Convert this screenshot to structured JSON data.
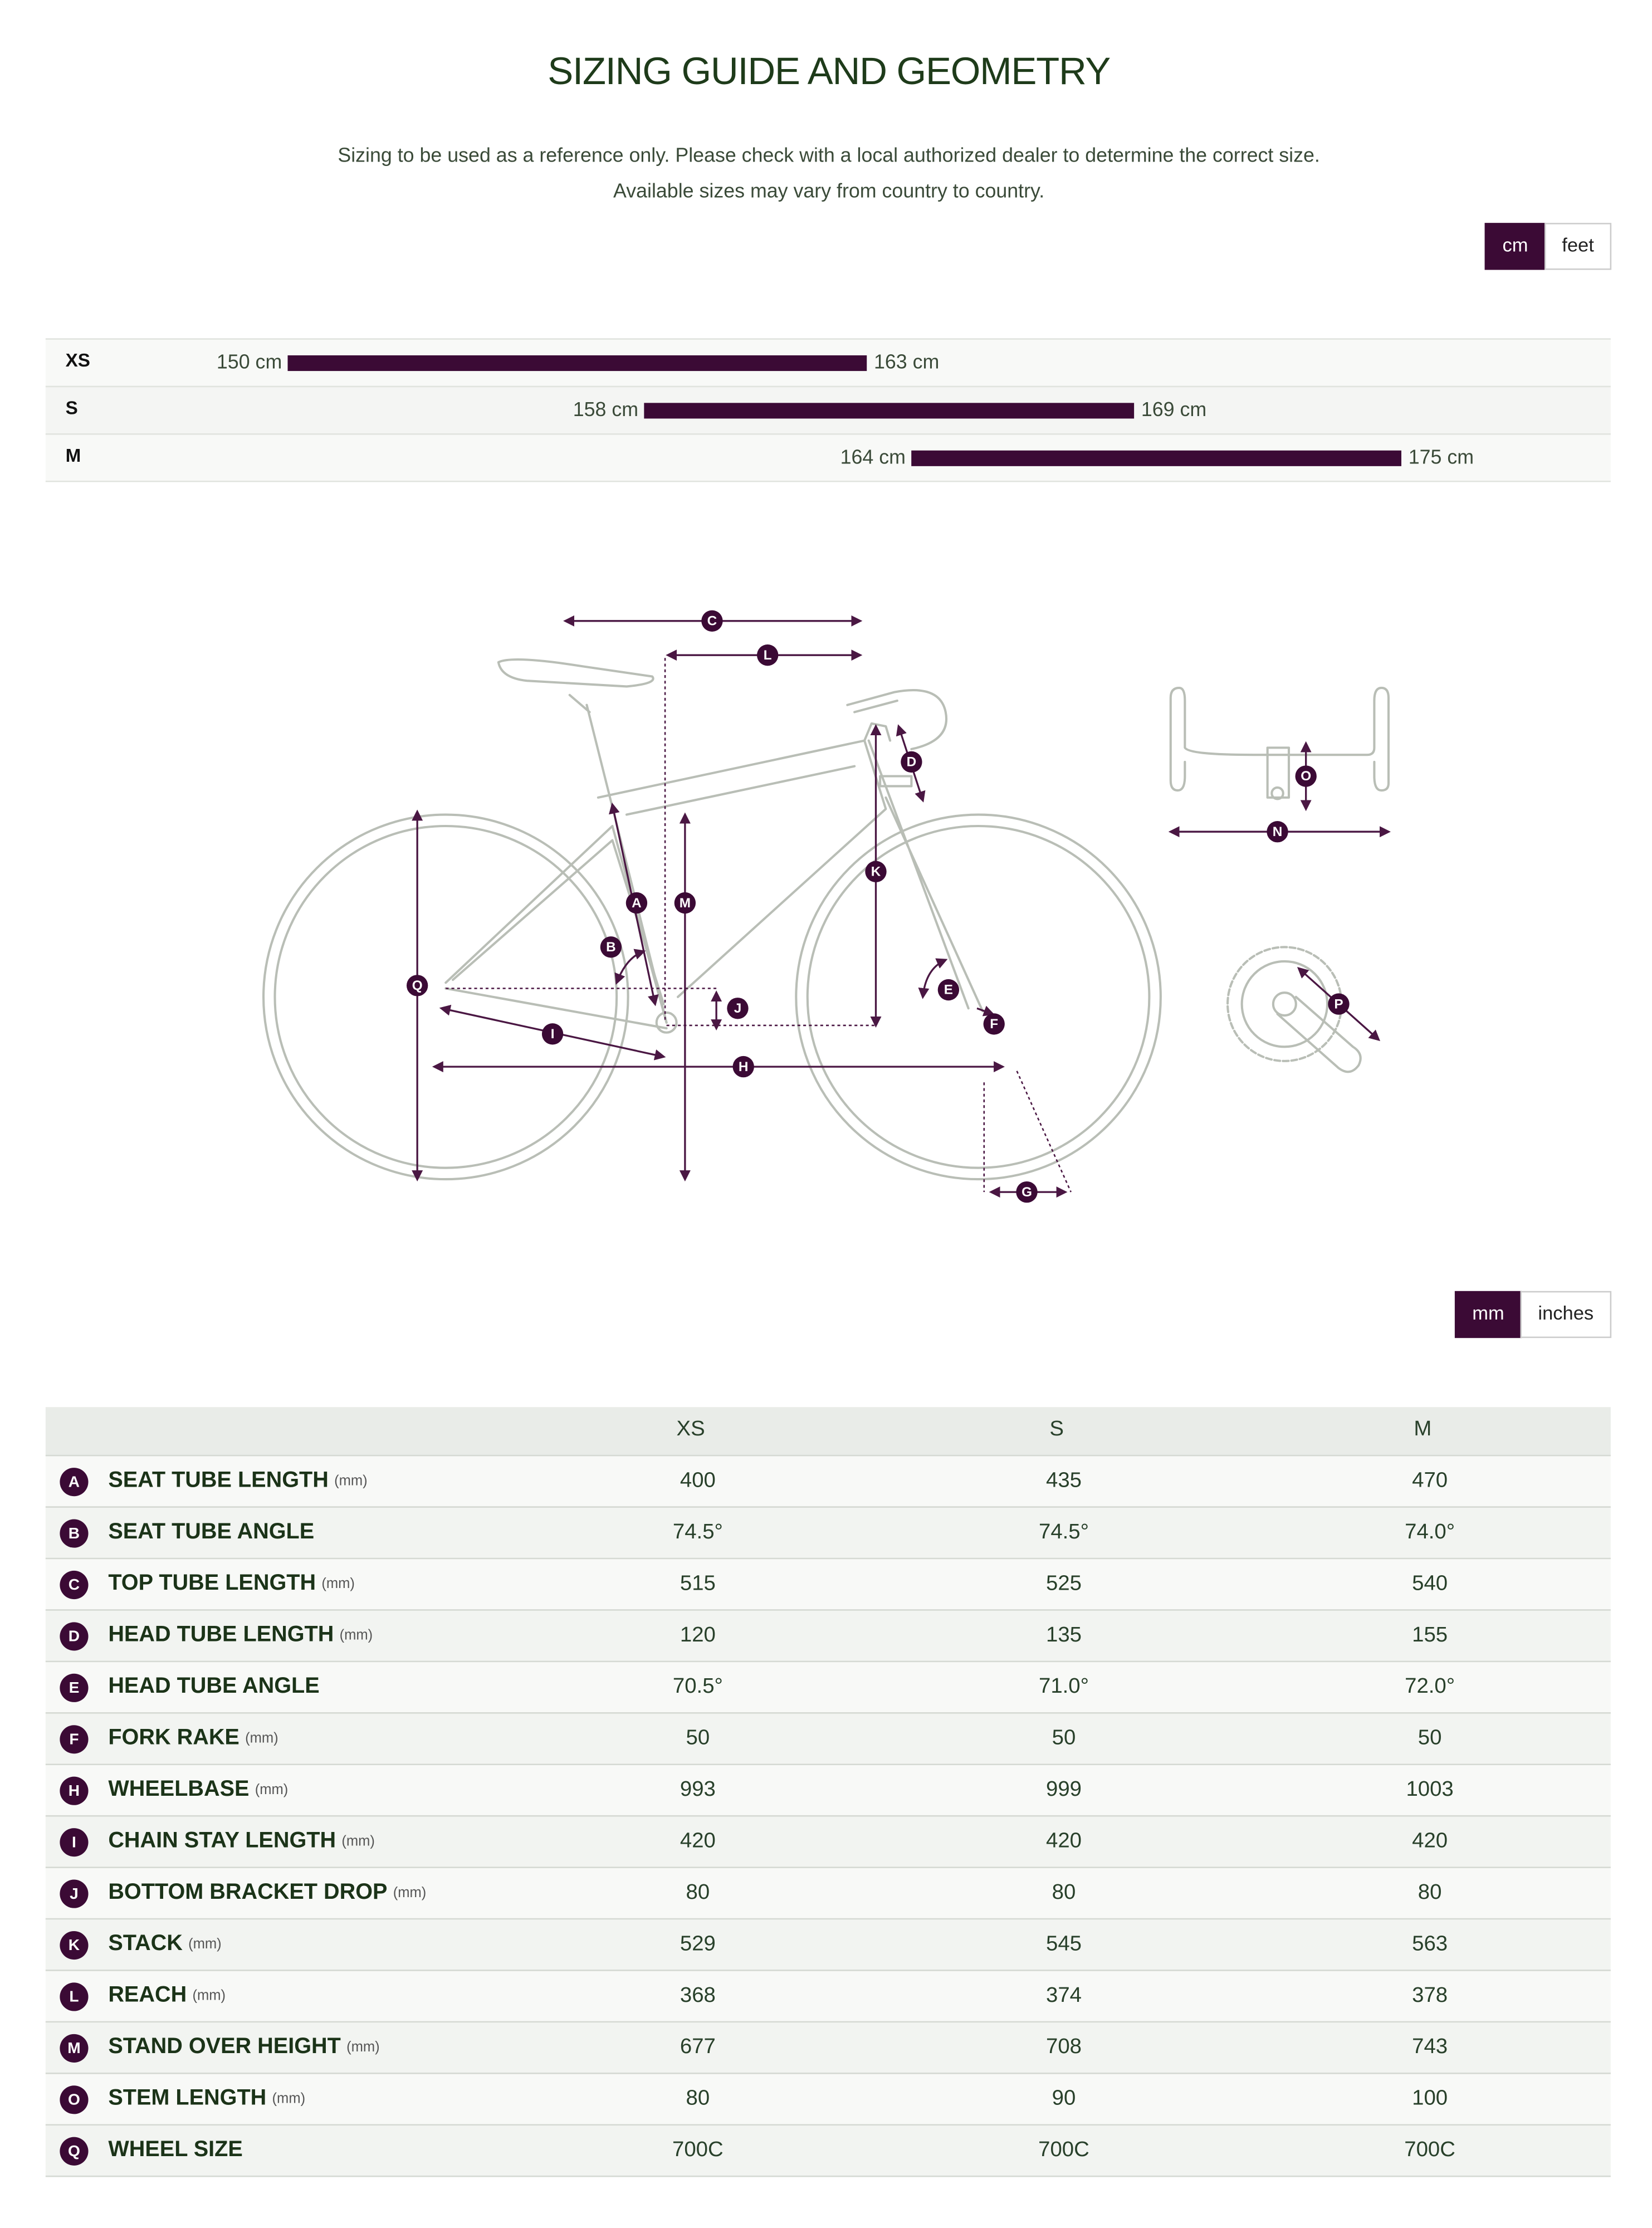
{
  "header": {
    "title": "SIZING GUIDE AND GEOMETRY",
    "notes": [
      "Sizing to be used as a reference only. Please check with a local authorized dealer to determine the correct size.",
      "Available sizes may vary from country to country."
    ]
  },
  "height_unit_toggle": {
    "options": [
      "cm",
      "feet"
    ],
    "selected": 0
  },
  "size_chart": {
    "type": "range-bar",
    "color": "#3b0a35",
    "rows": [
      {
        "size": "XS",
        "min": 150,
        "max": 163,
        "min_label": "150 cm",
        "max_label": "163 cm"
      },
      {
        "size": "S",
        "min": 158,
        "max": 169,
        "min_label": "158 cm",
        "max_label": "169 cm"
      },
      {
        "size": "M",
        "min": 164,
        "max": 175,
        "min_label": "164 cm",
        "max_label": "175 cm"
      }
    ]
  },
  "diagram": {
    "markers": [
      "C",
      "L",
      "D",
      "O",
      "N",
      "K",
      "A",
      "M",
      "B",
      "Q",
      "E",
      "J",
      "I",
      "F",
      "H",
      "G",
      "P"
    ]
  },
  "geometry_unit_toggle": {
    "options": [
      "mm",
      "inches"
    ],
    "selected": 0
  },
  "geometry_table": {
    "columns": [
      "XS",
      "S",
      "M"
    ],
    "rows": [
      {
        "key": "A",
        "label": "SEAT TUBE LENGTH",
        "unit": "(mm)",
        "values": [
          "400",
          "435",
          "470"
        ]
      },
      {
        "key": "B",
        "label": "SEAT TUBE ANGLE",
        "unit": null,
        "values": [
          "74.5°",
          "74.5°",
          "74.0°"
        ]
      },
      {
        "key": "C",
        "label": "TOP TUBE LENGTH",
        "unit": "(mm)",
        "values": [
          "515",
          "525",
          "540"
        ]
      },
      {
        "key": "D",
        "label": "HEAD TUBE LENGTH",
        "unit": "(mm)",
        "values": [
          "120",
          "135",
          "155"
        ]
      },
      {
        "key": "E",
        "label": "HEAD TUBE ANGLE",
        "unit": null,
        "values": [
          "70.5°",
          "71.0°",
          "72.0°"
        ]
      },
      {
        "key": "F",
        "label": "FORK RAKE",
        "unit": "(mm)",
        "values": [
          "50",
          "50",
          "50"
        ]
      },
      {
        "key": "H",
        "label": "WHEELBASE",
        "unit": "(mm)",
        "values": [
          "993",
          "999",
          "1003"
        ]
      },
      {
        "key": "I",
        "label": "CHAIN STAY LENGTH",
        "unit": "(mm)",
        "values": [
          "420",
          "420",
          "420"
        ]
      },
      {
        "key": "J",
        "label": "BOTTOM BRACKET DROP",
        "unit": "(mm)",
        "values": [
          "80",
          "80",
          "80"
        ]
      },
      {
        "key": "K",
        "label": "STACK",
        "unit": "(mm)",
        "values": [
          "529",
          "545",
          "563"
        ]
      },
      {
        "key": "L",
        "label": "REACH",
        "unit": "(mm)",
        "values": [
          "368",
          "374",
          "378"
        ]
      },
      {
        "key": "M",
        "label": "STAND OVER HEIGHT",
        "unit": "(mm)",
        "values": [
          "677",
          "708",
          "743"
        ]
      },
      {
        "key": "O",
        "label": "STEM LENGTH",
        "unit": "(mm)",
        "values": [
          "80",
          "90",
          "100"
        ]
      },
      {
        "key": "Q",
        "label": "WHEEL SIZE",
        "unit": null,
        "values": [
          "700C",
          "700C",
          "700C"
        ]
      }
    ]
  }
}
